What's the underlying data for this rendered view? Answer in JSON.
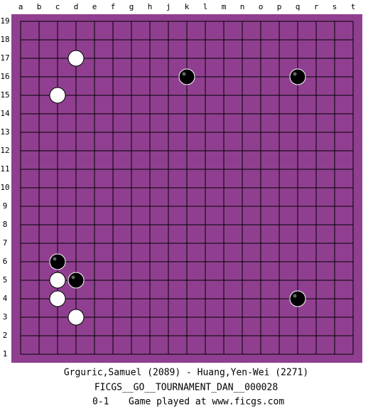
{
  "board": {
    "columns": [
      "a",
      "b",
      "c",
      "d",
      "e",
      "f",
      "g",
      "h",
      "j",
      "k",
      "l",
      "m",
      "n",
      "o",
      "p",
      "q",
      "r",
      "s",
      "t"
    ],
    "rows": [
      "19",
      "18",
      "17",
      "16",
      "15",
      "14",
      "13",
      "12",
      "11",
      "10",
      "9",
      "8",
      "7",
      "6",
      "5",
      "4",
      "3",
      "2",
      "1"
    ],
    "stones": [
      {
        "color": "white",
        "point": "d17"
      },
      {
        "color": "white",
        "point": "c15"
      },
      {
        "color": "black",
        "point": "k16"
      },
      {
        "color": "black",
        "point": "q16"
      },
      {
        "color": "black",
        "point": "c6"
      },
      {
        "color": "white",
        "point": "c5"
      },
      {
        "color": "black",
        "point": "d5"
      },
      {
        "color": "white",
        "point": "c4"
      },
      {
        "color": "white",
        "point": "d3"
      },
      {
        "color": "black",
        "point": "q4"
      }
    ]
  },
  "footer": {
    "players": "Grguric,Samuel (2089) - Huang,Yen-Wei (2271)",
    "tournament": "FICGS__GO__TOURNAMENT_DAN__000028",
    "result": "0-1",
    "site": "Game played at www.ficgs.com"
  }
}
